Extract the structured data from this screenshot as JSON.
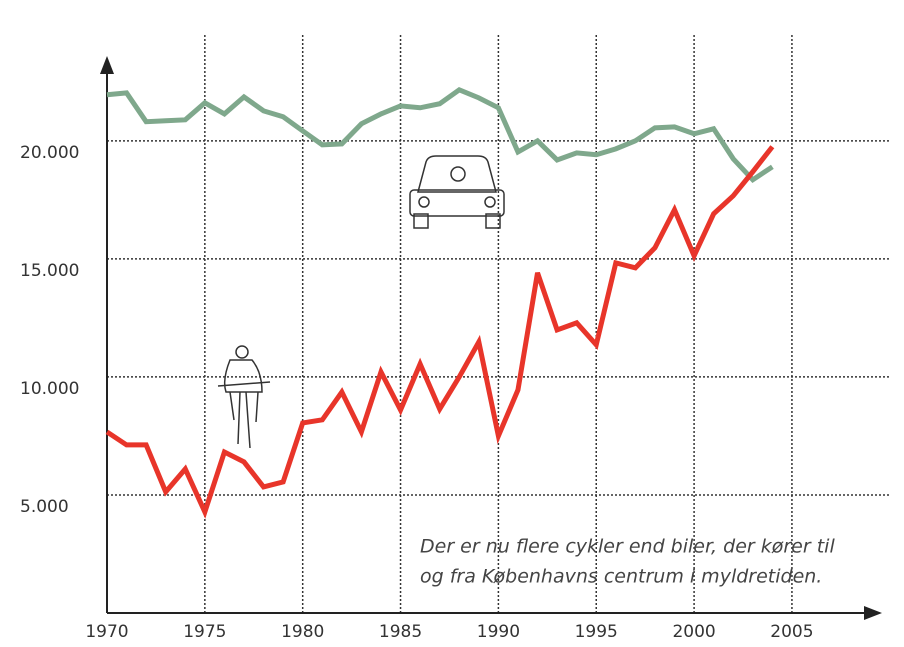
{
  "chart_data": {
    "type": "line",
    "annotation": [
      "Der er nu flere cykler end biler, der kører til",
      "og fra Københavns centrum i myldretiden."
    ],
    "x": [
      1970,
      1971,
      1972,
      1973,
      1974,
      1975,
      1976,
      1977,
      1978,
      1979,
      1980,
      1981,
      1982,
      1983,
      1984,
      1985,
      1986,
      1987,
      1988,
      1989,
      1990,
      1991,
      1992,
      1993,
      1994,
      1995,
      1996,
      1997,
      1998,
      1999,
      2000,
      2001,
      2002,
      2003,
      2004
    ],
    "series": [
      {
        "name": null,
        "color": "#7fa88c",
        "values": [
          21950,
          22030,
          20810,
          20850,
          20890,
          21610,
          21140,
          21860,
          21270,
          21020,
          20420,
          19830,
          19870,
          20720,
          21140,
          21480,
          21400,
          21570,
          22160,
          21820,
          21400,
          19530,
          20000,
          19190,
          19490,
          19410,
          19660,
          20000,
          20550,
          20590,
          20300,
          20510,
          19240,
          18350,
          18900
        ]
      },
      {
        "name": null,
        "color": "#e8352a",
        "values": [
          7670,
          7120,
          7120,
          5130,
          6100,
          4280,
          6820,
          6400,
          5340,
          5550,
          8050,
          8180,
          9360,
          7670,
          10210,
          8600,
          10550,
          8640,
          10000,
          11480,
          7500,
          9450,
          14410,
          11990,
          12290,
          11360,
          14830,
          14620,
          15470,
          17080,
          15130,
          16910,
          17670,
          18690,
          19750
        ]
      }
    ],
    "xlim": [
      1970,
      2009.5
    ],
    "xticks": [
      1970,
      1975,
      1980,
      1985,
      1990,
      1995,
      2000,
      2005
    ],
    "ylim": [
      0,
      23000
    ],
    "yticks": [
      {
        "value": 5000,
        "label": "5.000"
      },
      {
        "value": 10000,
        "label": "10.000"
      },
      {
        "value": 15000,
        "label": "15.000"
      },
      {
        "value": 20000,
        "label": "20.000"
      }
    ],
    "grid": true
  }
}
